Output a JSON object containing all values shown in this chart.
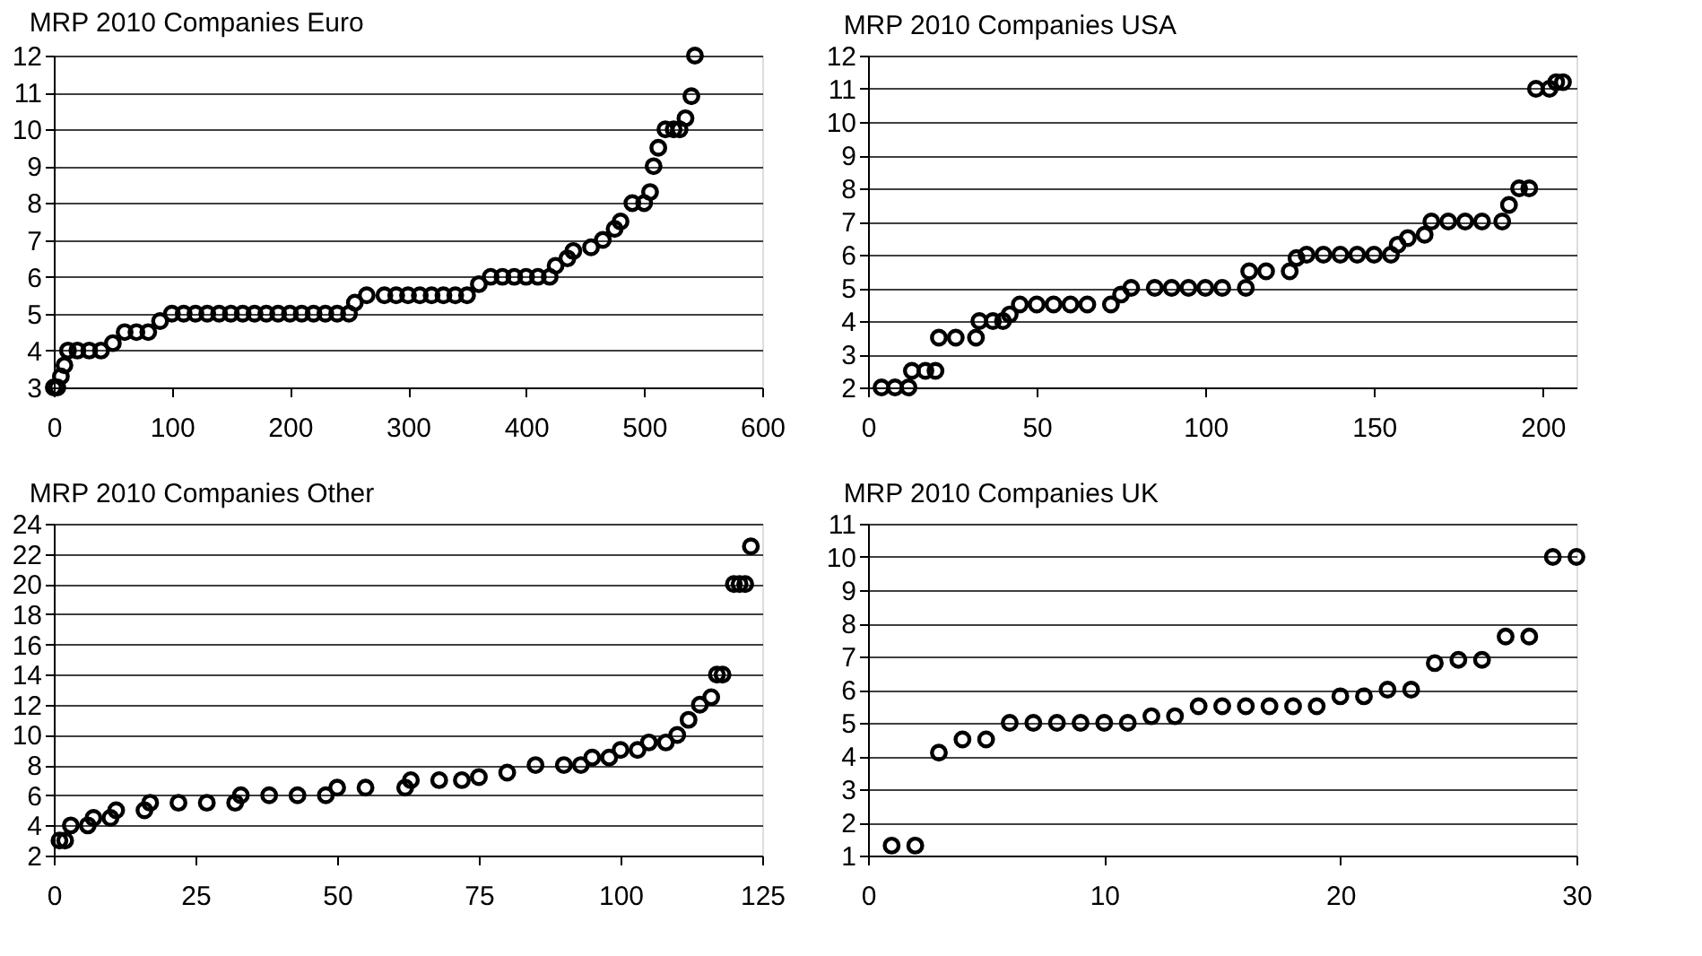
{
  "chart_data": [
    {
      "type": "scatter",
      "title": "MRP 2010 Companies Euro",
      "marker": "circle",
      "grid": "y",
      "xlim": [
        0,
        600
      ],
      "xticks": [
        0,
        100,
        200,
        300,
        400,
        500,
        600
      ],
      "ylim": [
        3,
        12
      ],
      "yticks": [
        3,
        4,
        5,
        6,
        7,
        8,
        9,
        10,
        11,
        12
      ],
      "x": [
        0,
        3,
        6,
        9,
        12,
        20,
        30,
        40,
        50,
        60,
        70,
        80,
        90,
        100,
        110,
        120,
        130,
        140,
        150,
        160,
        170,
        180,
        190,
        200,
        210,
        220,
        230,
        240,
        250,
        255,
        265,
        280,
        290,
        300,
        310,
        320,
        330,
        340,
        350,
        360,
        370,
        380,
        390,
        400,
        410,
        420,
        425,
        435,
        440,
        455,
        465,
        475,
        480,
        490,
        500,
        505,
        508,
        512,
        518,
        525,
        530,
        535,
        540,
        543
      ],
      "series": [
        {
          "color": "#000000",
          "values": [
            3,
            3,
            3.3,
            3.6,
            4,
            4,
            4,
            4,
            4.2,
            4.5,
            4.5,
            4.5,
            4.8,
            5,
            5,
            5,
            5,
            5,
            5,
            5,
            5,
            5,
            5,
            5,
            5,
            5,
            5,
            5,
            5,
            5.3,
            5.5,
            5.5,
            5.5,
            5.5,
            5.5,
            5.5,
            5.5,
            5.5,
            5.5,
            5.8,
            6,
            6,
            6,
            6,
            6,
            6,
            6.3,
            6.5,
            6.7,
            6.8,
            7,
            7.3,
            7.5,
            8,
            8,
            8.3,
            9,
            9.5,
            10,
            10,
            10,
            10.3,
            10.9,
            12
          ]
        }
      ]
    },
    {
      "type": "scatter",
      "title": "MRP 2010 Companies USA",
      "marker": "circle",
      "grid": "y",
      "xlim": [
        0,
        210
      ],
      "xticks": [
        0,
        50,
        100,
        150,
        200
      ],
      "ylim": [
        2,
        12
      ],
      "yticks": [
        2,
        3,
        4,
        5,
        6,
        7,
        8,
        9,
        10,
        11,
        12
      ],
      "x": [
        4,
        8,
        12,
        13,
        17,
        20,
        21,
        26,
        32,
        33,
        37,
        40,
        42,
        45,
        50,
        55,
        60,
        65,
        72,
        75,
        78,
        85,
        90,
        95,
        100,
        105,
        112,
        113,
        118,
        125,
        127,
        130,
        135,
        140,
        145,
        150,
        155,
        157,
        160,
        165,
        167,
        172,
        177,
        182,
        188,
        190,
        193,
        196,
        198,
        202,
        204,
        206
      ],
      "series": [
        {
          "color": "#000000",
          "values": [
            2,
            2,
            2,
            2.5,
            2.5,
            2.5,
            3.5,
            3.5,
            3.5,
            4,
            4,
            4,
            4.2,
            4.5,
            4.5,
            4.5,
            4.5,
            4.5,
            4.5,
            4.8,
            5,
            5,
            5,
            5,
            5,
            5,
            5,
            5.5,
            5.5,
            5.5,
            5.9,
            6,
            6,
            6,
            6,
            6,
            6,
            6.3,
            6.5,
            6.6,
            7,
            7,
            7,
            7,
            7,
            7.5,
            8,
            8,
            11,
            11,
            11.2,
            11.2
          ]
        }
      ]
    },
    {
      "type": "scatter",
      "title": "MRP 2010 Companies Other",
      "marker": "circle",
      "grid": "y",
      "xlim": [
        0,
        125
      ],
      "xticks": [
        0,
        25,
        50,
        75,
        100,
        125
      ],
      "ylim": [
        2,
        24
      ],
      "yticks": [
        2,
        4,
        6,
        8,
        10,
        12,
        14,
        16,
        18,
        20,
        22,
        24
      ],
      "x": [
        1,
        2,
        3,
        6,
        7,
        10,
        11,
        16,
        17,
        22,
        27,
        32,
        33,
        38,
        43,
        48,
        50,
        55,
        62,
        63,
        68,
        72,
        75,
        80,
        85,
        90,
        93,
        95,
        98,
        100,
        103,
        105,
        108,
        110,
        112,
        114,
        116,
        117,
        118,
        120,
        121,
        122,
        123
      ],
      "series": [
        {
          "color": "#000000",
          "values": [
            3,
            3,
            4,
            4,
            4.5,
            4.5,
            5,
            5,
            5.5,
            5.5,
            5.5,
            5.5,
            6,
            6,
            6,
            6,
            6.5,
            6.5,
            6.5,
            7,
            7,
            7,
            7.2,
            7.5,
            8,
            8,
            8,
            8.5,
            8.5,
            9,
            9,
            9.5,
            9.5,
            10,
            11,
            12,
            12.5,
            14,
            14,
            20,
            20,
            20,
            22.5
          ]
        }
      ]
    },
    {
      "type": "scatter",
      "title": "MRP 2010 Companies UK",
      "marker": "circle",
      "grid": "y",
      "xlim": [
        0,
        30
      ],
      "xticks": [
        0,
        10,
        20,
        30
      ],
      "ylim": [
        1,
        11
      ],
      "yticks": [
        1,
        2,
        3,
        4,
        5,
        6,
        7,
        8,
        9,
        10,
        11
      ],
      "x": [
        1,
        2,
        3,
        4,
        5,
        6,
        7,
        8,
        9,
        10,
        11,
        12,
        13,
        14,
        15,
        16,
        17,
        18,
        19,
        20,
        21,
        22,
        23,
        24,
        25,
        26,
        27,
        28,
        29,
        30
      ],
      "series": [
        {
          "color": "#000000",
          "values": [
            1.3,
            1.3,
            4.1,
            4.5,
            4.5,
            5,
            5,
            5,
            5,
            5,
            5,
            5.2,
            5.2,
            5.5,
            5.5,
            5.5,
            5.5,
            5.5,
            5.5,
            5.8,
            5.8,
            6,
            6,
            6.8,
            6.9,
            6.9,
            7.6,
            7.6,
            10,
            10
          ]
        }
      ]
    }
  ]
}
